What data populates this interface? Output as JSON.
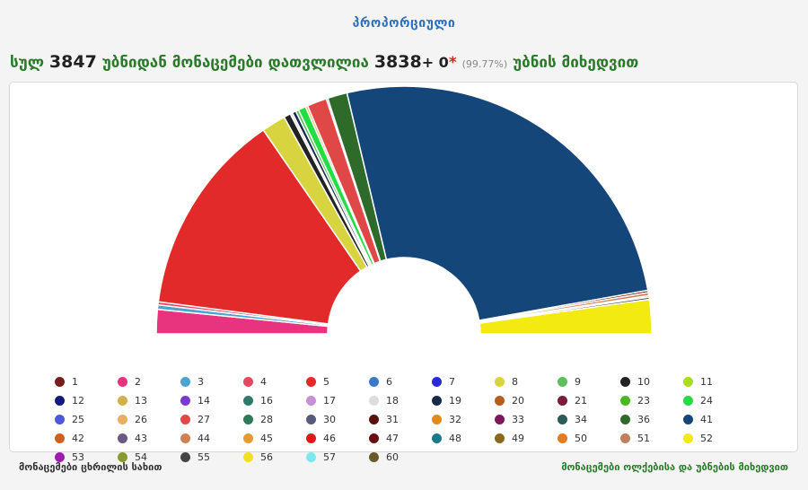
{
  "header": {
    "title_link": "პროპორციული"
  },
  "summary": {
    "prefix": "სულ",
    "total_precincts": "3847",
    "middle_text": "უბნიდან მონაცემები დათვლილია",
    "counted_precincts": "3838",
    "plus_text": "+ 0",
    "star": "*",
    "percent": "(99.77%)",
    "suffix": "უბნის მიხედვით"
  },
  "footer": {
    "left_link": "მონაცემები ცხრილის სახით",
    "right_link": "მონაცემები ოლქებისა და უბნების მიხედვით"
  },
  "chart_data": {
    "type": "pie",
    "variant": "semicircle-donut",
    "slices": [
      {
        "label": "2",
        "value": 3.2,
        "color": "#e8337f"
      },
      {
        "label": "3",
        "value": 0.6,
        "color": "#4aa3d1"
      },
      {
        "label": "4",
        "value": 0.4,
        "color": "#e54860"
      },
      {
        "label": "5",
        "value": 27.0,
        "color": "#e32a2a"
      },
      {
        "label": "8",
        "value": 3.2,
        "color": "#d8d43f"
      },
      {
        "label": "10",
        "value": 0.9,
        "color": "#222222"
      },
      {
        "label": "18",
        "value": 0.3,
        "color": "#dddddd"
      },
      {
        "label": "19",
        "value": 0.5,
        "color": "#1a2a4a"
      },
      {
        "label": "9",
        "value": 0.4,
        "color": "#5cc05c"
      },
      {
        "label": "24",
        "value": 1.0,
        "color": "#22dd44"
      },
      {
        "label": "26",
        "value": 0.3,
        "color": "#e8b060"
      },
      {
        "label": "27",
        "value": 2.6,
        "color": "#e04848"
      },
      {
        "label": "12",
        "value": 0.2,
        "color": "#111a7a"
      },
      {
        "label": "36",
        "value": 2.6,
        "color": "#2e6b2a"
      },
      {
        "label": "41",
        "value": 52.5,
        "color": "#144679"
      },
      {
        "label": "47",
        "value": 0.3,
        "color": "#6a0e12"
      },
      {
        "label": "44",
        "value": 0.4,
        "color": "#d08050"
      },
      {
        "label": "51",
        "value": 0.2,
        "color": "#c08060"
      },
      {
        "label": "55",
        "value": 0.3,
        "color": "#444444"
      },
      {
        "label": "52",
        "value": 4.5,
        "color": "#f2ea10"
      }
    ],
    "legend": [
      {
        "label": "1",
        "color": "#7a1c1c"
      },
      {
        "label": "2",
        "color": "#e8337f"
      },
      {
        "label": "3",
        "color": "#4aa3d1"
      },
      {
        "label": "4",
        "color": "#e54860"
      },
      {
        "label": "5",
        "color": "#e32a2a"
      },
      {
        "label": "6",
        "color": "#3a78c8"
      },
      {
        "label": "7",
        "color": "#2a2ad8"
      },
      {
        "label": "8",
        "color": "#d8d43f"
      },
      {
        "label": "9",
        "color": "#5cc05c"
      },
      {
        "label": "10",
        "color": "#222222"
      },
      {
        "label": "11",
        "color": "#a8dd20"
      },
      {
        "label": "12",
        "color": "#111a7a"
      },
      {
        "label": "13",
        "color": "#d4b04a"
      },
      {
        "label": "14",
        "color": "#7a3ad0"
      },
      {
        "label": "16",
        "color": "#2f7a6a"
      },
      {
        "label": "17",
        "color": "#c890d8"
      },
      {
        "label": "18",
        "color": "#dddddd"
      },
      {
        "label": "19",
        "color": "#1a2a4a"
      },
      {
        "label": "20",
        "color": "#b85c20"
      },
      {
        "label": "21",
        "color": "#7a1c3a"
      },
      {
        "label": "23",
        "color": "#4ab820"
      },
      {
        "label": "24",
        "color": "#22dd44"
      },
      {
        "label": "25",
        "color": "#4a5ad8"
      },
      {
        "label": "26",
        "color": "#e8b060"
      },
      {
        "label": "27",
        "color": "#e04848"
      },
      {
        "label": "28",
        "color": "#2f7a5a"
      },
      {
        "label": "30",
        "color": "#5a5a7a"
      },
      {
        "label": "31",
        "color": "#5a1010"
      },
      {
        "label": "32",
        "color": "#e08a20"
      },
      {
        "label": "33",
        "color": "#7a1a5a"
      },
      {
        "label": "34",
        "color": "#2a5a5a"
      },
      {
        "label": "36",
        "color": "#2e6b2a"
      },
      {
        "label": "41",
        "color": "#144679"
      },
      {
        "label": "42",
        "color": "#d0601a"
      },
      {
        "label": "43",
        "color": "#6a5a8a"
      },
      {
        "label": "44",
        "color": "#d08050"
      },
      {
        "label": "45",
        "color": "#e89a30"
      },
      {
        "label": "46",
        "color": "#e01a1a"
      },
      {
        "label": "47",
        "color": "#6a0e12"
      },
      {
        "label": "48",
        "color": "#1a7a8a"
      },
      {
        "label": "49",
        "color": "#8a6a1a"
      },
      {
        "label": "50",
        "color": "#e87a20"
      },
      {
        "label": "51",
        "color": "#c08060"
      },
      {
        "label": "52",
        "color": "#f2ea10"
      },
      {
        "label": "53",
        "color": "#a01ab0"
      },
      {
        "label": "54",
        "color": "#8a9a2a"
      },
      {
        "label": "55",
        "color": "#444444"
      },
      {
        "label": "56",
        "color": "#f0e020"
      },
      {
        "label": "57",
        "color": "#7ae8f0"
      },
      {
        "label": "60",
        "color": "#6a5a2a"
      }
    ]
  }
}
